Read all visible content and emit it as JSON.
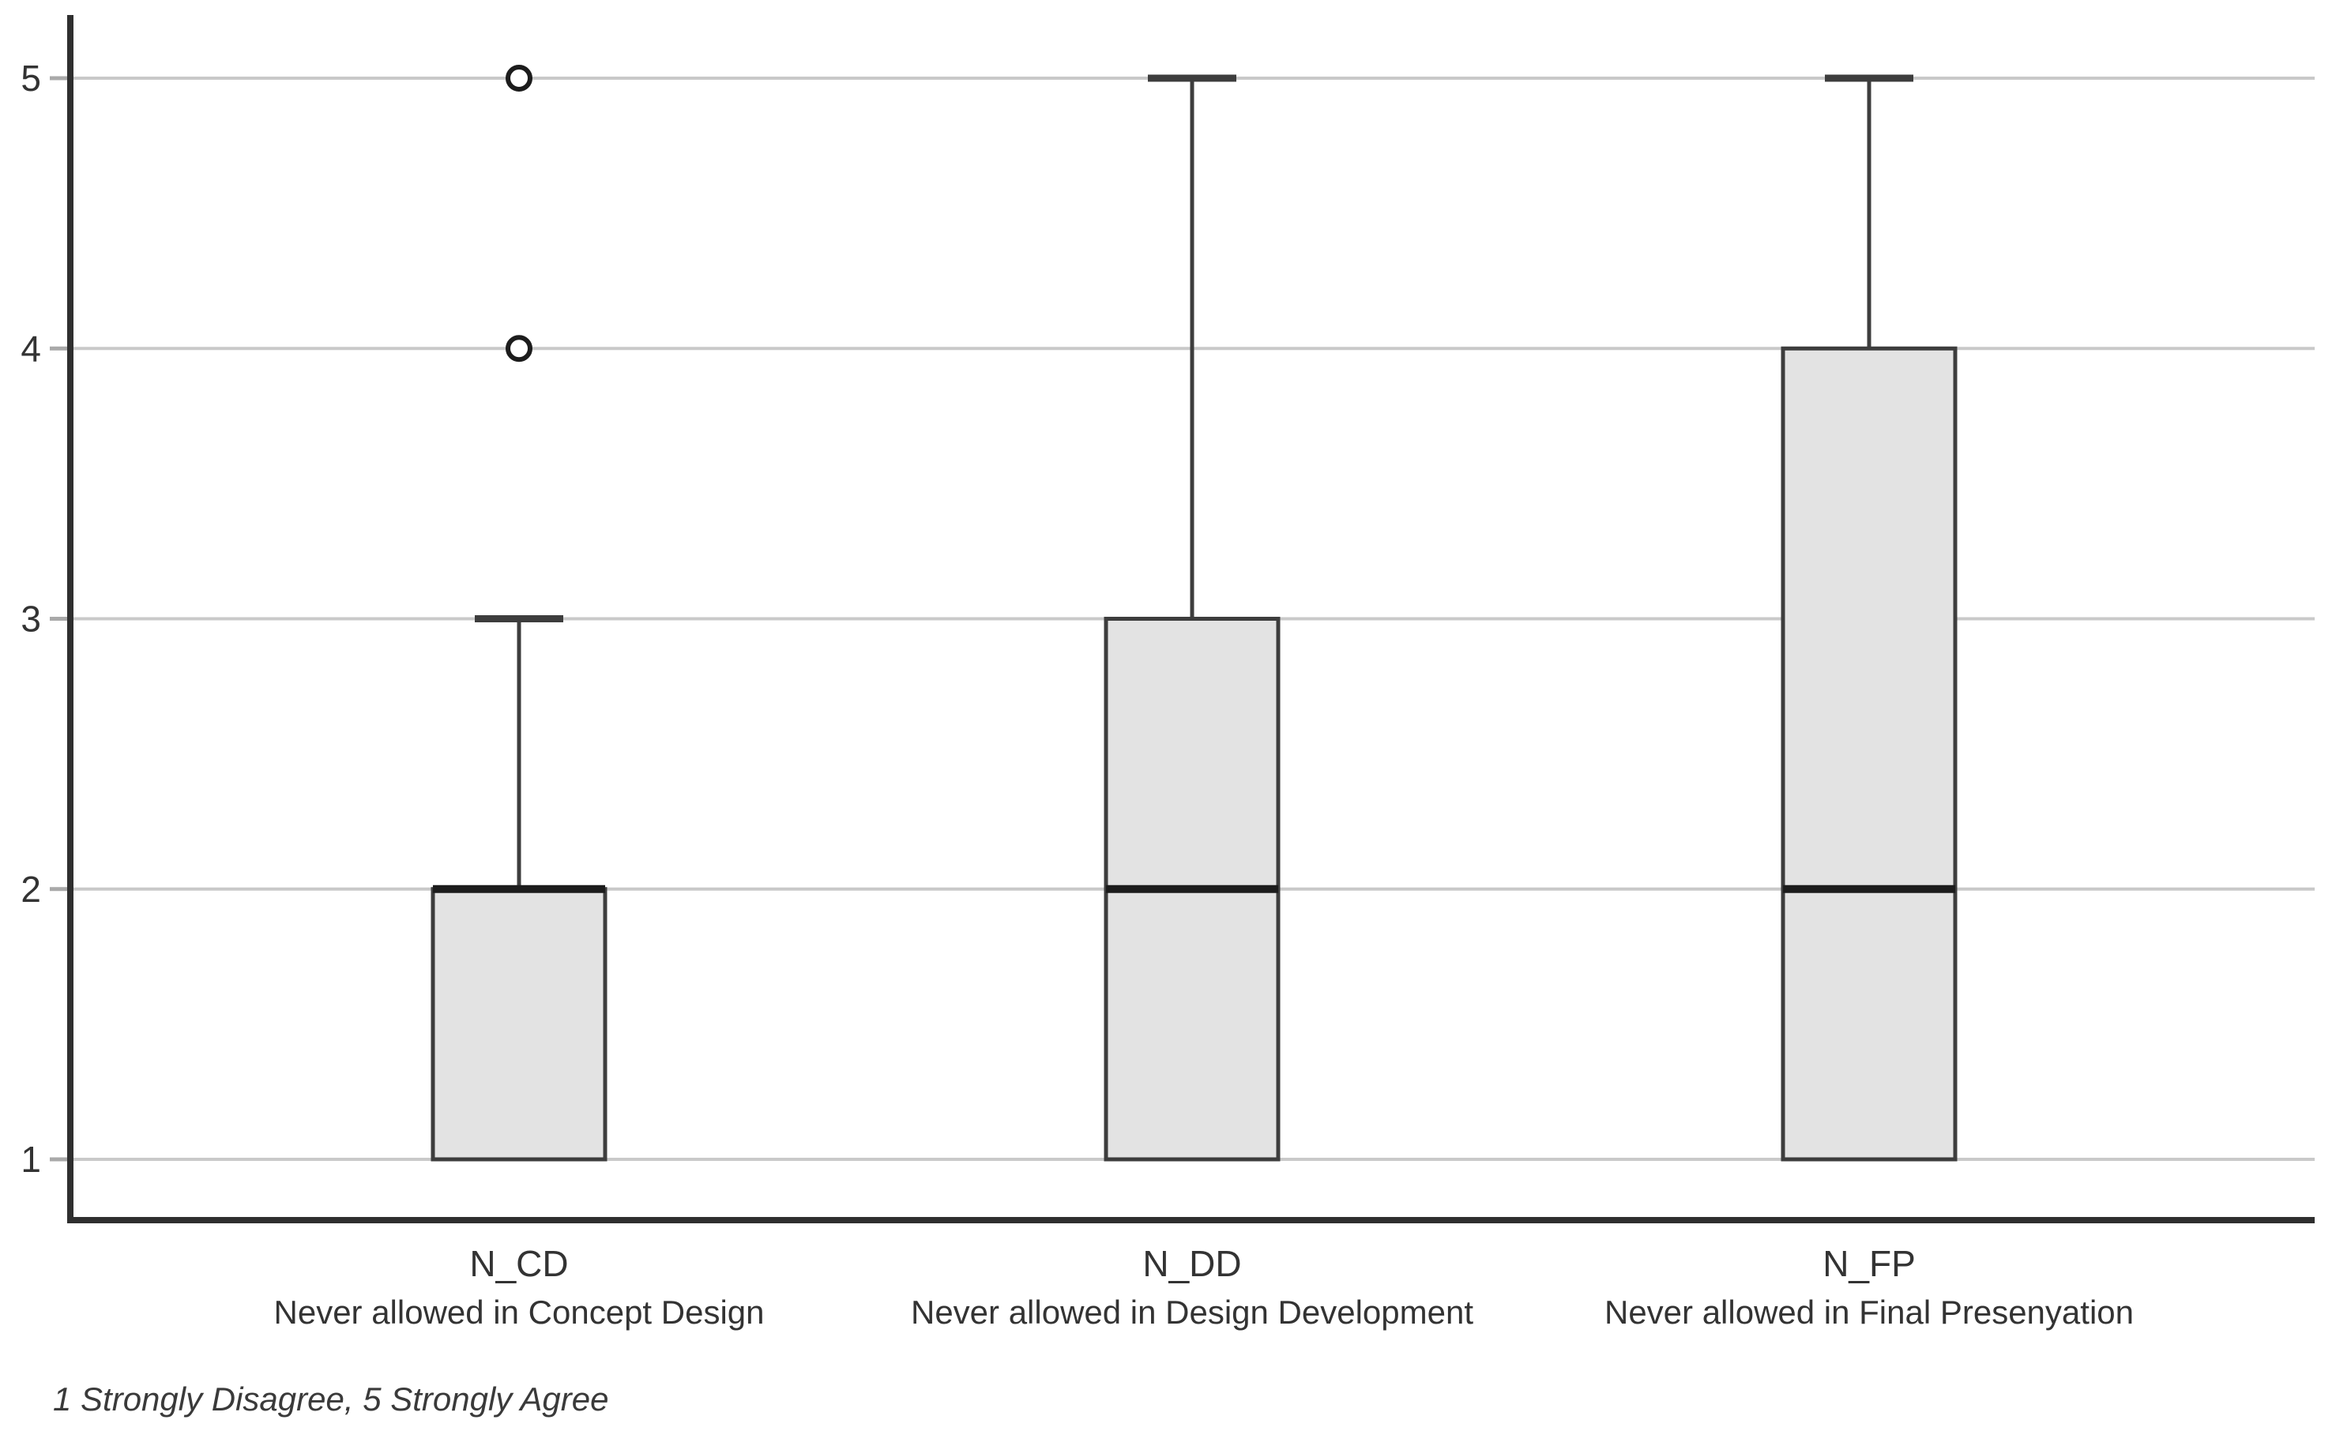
{
  "chart_data": {
    "type": "boxplot",
    "title": "",
    "xlabel": "",
    "ylabel": "",
    "ylim": [
      0.78,
      5.23
    ],
    "yticks": [
      1,
      2,
      3,
      4,
      5
    ],
    "grid": "horizontal",
    "legend": "none",
    "orientation": "vertical",
    "footnote": "1 Strongly Disagree, 5 Strongly Agree",
    "categories": [
      {
        "code": "N_CD",
        "label": "Never allowed in Concept Design",
        "whisker_low": 1,
        "q1": 1,
        "median": 2,
        "q3": 2,
        "whisker_high": 3,
        "outliers": [
          4,
          5
        ]
      },
      {
        "code": "N_DD",
        "label": "Never allowed in Design Development",
        "whisker_low": 1,
        "q1": 1,
        "median": 2,
        "q3": 3,
        "whisker_high": 5,
        "outliers": []
      },
      {
        "code": "N_FP",
        "label": "Never allowed in Final Presenyation",
        "whisker_low": 1,
        "q1": 1,
        "median": 2,
        "q3": 4,
        "whisker_high": 5,
        "outliers": []
      }
    ],
    "colors": {
      "background": "#ffffff",
      "box_fill": "#e3e3e3",
      "box_border": "#3d3d3d",
      "median_line": "#1c1c1c",
      "whisker": "#3d3d3d",
      "outlier_stroke": "#1c1c1c",
      "gridline": "#c9c9c9",
      "tick_mark": "#a9a9a9",
      "axis": "#2f2f2f",
      "text": "#333333"
    }
  }
}
